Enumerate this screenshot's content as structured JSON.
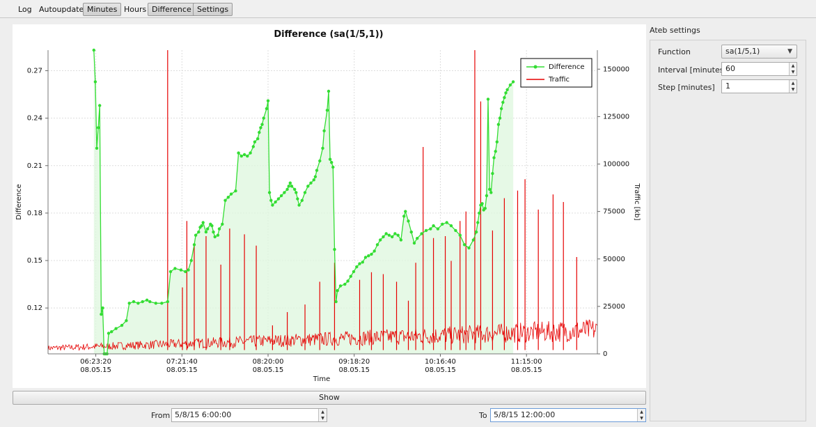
{
  "toolbar": {
    "items": [
      {
        "label": "Log",
        "active": false
      },
      {
        "label": "Autoupdate",
        "active": false
      },
      {
        "label": "Minutes",
        "active": true
      },
      {
        "label": "Hours",
        "active": false
      },
      {
        "label": "Difference",
        "active": true
      },
      {
        "label": "Settings",
        "active": true
      }
    ]
  },
  "settings": {
    "title": "Ateb settings",
    "function_label": "Function",
    "function_value": "sa(1/5,1)",
    "interval_label": "Interval [minutes]",
    "interval_value": "60",
    "step_label": "Step [minutes]",
    "step_value": "1"
  },
  "controls": {
    "show_label": "Show",
    "from_label": "From",
    "from_value": "5/8/15 6:00:00",
    "to_label": "To",
    "to_value": "5/8/15 12:00:00"
  },
  "chart_data": {
    "type": "line",
    "title": "Difference (sa(1/5,1))",
    "xlabel": "Time",
    "ylabel": "Difference",
    "y2label": "Traffic [kb]",
    "x_range": [
      "05:51:00",
      "12:03:00"
    ],
    "x_ticks": [
      {
        "time": "06:23:20",
        "date": "08.05.15"
      },
      {
        "time": "07:21:40",
        "date": "08.05.15"
      },
      {
        "time": "08:20:00",
        "date": "08.05.15"
      },
      {
        "time": "09:18:20",
        "date": "08.05.15"
      },
      {
        "time": "10:16:40",
        "date": "08.05.15"
      },
      {
        "time": "11:15:00",
        "date": "08.05.15"
      }
    ],
    "ylim": [
      0.091,
      0.283
    ],
    "yticks": [
      "0.12",
      "0.15",
      "0.18",
      "0.21",
      "0.24",
      "0.27"
    ],
    "y2lim": [
      0,
      160000
    ],
    "y2ticks": [
      "0",
      "25000",
      "50000",
      "75000",
      "100000",
      "125000",
      "150000"
    ],
    "grid": true,
    "legend_position": "top-right",
    "colors": {
      "difference": "#33dd33",
      "difference_fill": "#ddf7dd",
      "traffic": "#e60000"
    },
    "series": [
      {
        "name": "Difference",
        "axis": "left",
        "points": [
          [
            "06:22:00",
            0.283
          ],
          [
            "06:23:00",
            0.263
          ],
          [
            "06:24:00",
            0.221
          ],
          [
            "06:25:00",
            0.234
          ],
          [
            "06:26:00",
            0.248
          ],
          [
            "06:27:00",
            0.116
          ],
          [
            "06:28:00",
            0.12
          ],
          [
            "06:29:00",
            0.091
          ],
          [
            "06:30:00",
            0.091
          ],
          [
            "06:31:00",
            0.091
          ],
          [
            "06:32:00",
            0.104
          ],
          [
            "06:34:00",
            0.105
          ],
          [
            "06:37:00",
            0.107
          ],
          [
            "06:41:00",
            0.109
          ],
          [
            "06:44:00",
            0.112
          ],
          [
            "06:46:00",
            0.123
          ],
          [
            "06:49:00",
            0.124
          ],
          [
            "06:52:00",
            0.123
          ],
          [
            "06:55:00",
            0.124
          ],
          [
            "06:58:00",
            0.125
          ],
          [
            "07:00:00",
            0.124
          ],
          [
            "07:04:00",
            0.123
          ],
          [
            "07:08:00",
            0.123
          ],
          [
            "07:12:00",
            0.124
          ],
          [
            "07:14:00",
            0.143
          ],
          [
            "07:17:00",
            0.145
          ],
          [
            "07:21:00",
            0.144
          ],
          [
            "07:24:00",
            0.143
          ],
          [
            "07:26:00",
            0.144
          ],
          [
            "07:28:00",
            0.15
          ],
          [
            "07:30:00",
            0.16
          ],
          [
            "07:31:00",
            0.166
          ],
          [
            "07:33:00",
            0.168
          ],
          [
            "07:34:00",
            0.171
          ],
          [
            "07:35:00",
            0.172
          ],
          [
            "07:36:00",
            0.174
          ],
          [
            "07:38:00",
            0.168
          ],
          [
            "07:39:00",
            0.17
          ],
          [
            "07:41:00",
            0.173
          ],
          [
            "07:42:00",
            0.172
          ],
          [
            "07:43:00",
            0.168
          ],
          [
            "07:44:00",
            0.165
          ],
          [
            "07:46:00",
            0.166
          ],
          [
            "07:47:00",
            0.17
          ],
          [
            "07:49:00",
            0.173
          ],
          [
            "07:51:00",
            0.188
          ],
          [
            "07:53:00",
            0.19
          ],
          [
            "07:55:00",
            0.192
          ],
          [
            "07:58:00",
            0.194
          ],
          [
            "08:00:00",
            0.218
          ],
          [
            "08:02:00",
            0.216
          ],
          [
            "08:04:00",
            0.217
          ],
          [
            "08:06:00",
            0.216
          ],
          [
            "08:08:00",
            0.218
          ],
          [
            "08:10:00",
            0.222
          ],
          [
            "08:11:00",
            0.225
          ],
          [
            "08:13:00",
            0.227
          ],
          [
            "08:14:00",
            0.231
          ],
          [
            "08:15:00",
            0.234
          ],
          [
            "08:16:00",
            0.236
          ],
          [
            "08:17:00",
            0.24
          ],
          [
            "08:19:00",
            0.246
          ],
          [
            "08:20:00",
            0.251
          ],
          [
            "08:21:00",
            0.193
          ],
          [
            "08:22:00",
            0.188
          ],
          [
            "08:23:00",
            0.185
          ],
          [
            "08:25:00",
            0.187
          ],
          [
            "08:27:00",
            0.189
          ],
          [
            "08:29:00",
            0.191
          ],
          [
            "08:31:00",
            0.193
          ],
          [
            "08:33:00",
            0.195
          ],
          [
            "08:34:00",
            0.197
          ],
          [
            "08:35:00",
            0.199
          ],
          [
            "08:36:00",
            0.197
          ],
          [
            "08:38:00",
            0.195
          ],
          [
            "08:39:00",
            0.193
          ],
          [
            "08:40:00",
            0.189
          ],
          [
            "08:41:00",
            0.185
          ],
          [
            "08:43:00",
            0.188
          ],
          [
            "08:45:00",
            0.193
          ],
          [
            "08:47:00",
            0.197
          ],
          [
            "08:49:00",
            0.199
          ],
          [
            "08:51:00",
            0.201
          ],
          [
            "08:52:00",
            0.203
          ],
          [
            "08:53:00",
            0.207
          ],
          [
            "08:55:00",
            0.213
          ],
          [
            "08:57:00",
            0.221
          ],
          [
            "08:58:00",
            0.232
          ],
          [
            "09:00:00",
            0.245
          ],
          [
            "09:01:00",
            0.257
          ],
          [
            "09:02:00",
            0.214
          ],
          [
            "09:03:00",
            0.212
          ],
          [
            "09:04:00",
            0.209
          ],
          [
            "09:05:00",
            0.157
          ],
          [
            "09:06:00",
            0.124
          ],
          [
            "09:07:00",
            0.131
          ],
          [
            "09:09:00",
            0.134
          ],
          [
            "09:12:00",
            0.135
          ],
          [
            "09:14:00",
            0.137
          ],
          [
            "09:16:00",
            0.14
          ],
          [
            "09:18:00",
            0.143
          ],
          [
            "09:20:00",
            0.146
          ],
          [
            "09:22:00",
            0.148
          ],
          [
            "09:24:00",
            0.149
          ],
          [
            "09:26:00",
            0.152
          ],
          [
            "09:28:00",
            0.153
          ],
          [
            "09:30:00",
            0.154
          ],
          [
            "09:32:00",
            0.156
          ],
          [
            "09:34:00",
            0.16
          ],
          [
            "09:36:00",
            0.163
          ],
          [
            "09:38:00",
            0.165
          ],
          [
            "09:40:00",
            0.167
          ],
          [
            "09:42:00",
            0.166
          ],
          [
            "09:44:00",
            0.165
          ],
          [
            "09:46:00",
            0.167
          ],
          [
            "09:48:00",
            0.166
          ],
          [
            "09:50:00",
            0.163
          ],
          [
            "09:52:00",
            0.178
          ],
          [
            "09:53:00",
            0.181
          ],
          [
            "09:55:00",
            0.175
          ],
          [
            "09:57:00",
            0.168
          ],
          [
            "09:59:00",
            0.161
          ],
          [
            "10:01:00",
            0.164
          ],
          [
            "10:04:00",
            0.167
          ],
          [
            "10:07:00",
            0.169
          ],
          [
            "10:10:00",
            0.17
          ],
          [
            "10:12:00",
            0.172
          ],
          [
            "10:15:00",
            0.17
          ],
          [
            "10:18:00",
            0.173
          ],
          [
            "10:21:00",
            0.174
          ],
          [
            "10:24:00",
            0.172
          ],
          [
            "10:27:00",
            0.169
          ],
          [
            "10:30:00",
            0.166
          ],
          [
            "10:33:00",
            0.16
          ],
          [
            "10:36:00",
            0.158
          ],
          [
            "10:39:00",
            0.163
          ],
          [
            "10:41:00",
            0.168
          ],
          [
            "10:42:00",
            0.174
          ],
          [
            "10:43:00",
            0.18
          ],
          [
            "10:44:00",
            0.185
          ],
          [
            "10:45:00",
            0.186
          ],
          [
            "10:46:00",
            0.182
          ],
          [
            "10:47:00",
            0.183
          ],
          [
            "10:48:00",
            0.191
          ],
          [
            "10:49:00",
            0.252
          ],
          [
            "10:50:00",
            0.195
          ],
          [
            "10:51:00",
            0.193
          ],
          [
            "10:52:00",
            0.205
          ],
          [
            "10:53:00",
            0.215
          ],
          [
            "10:54:00",
            0.219
          ],
          [
            "10:55:00",
            0.225
          ],
          [
            "10:56:00",
            0.236
          ],
          [
            "10:57:00",
            0.24
          ],
          [
            "10:58:00",
            0.246
          ],
          [
            "10:59:00",
            0.25
          ],
          [
            "11:00:00",
            0.253
          ],
          [
            "11:01:00",
            0.256
          ],
          [
            "11:02:00",
            0.258
          ],
          [
            "11:04:00",
            0.261
          ],
          [
            "11:06:00",
            0.263
          ]
        ]
      },
      {
        "name": "Traffic",
        "axis": "right",
        "spikes": [
          [
            "07:12:00",
            160000
          ],
          [
            "07:22:00",
            35000
          ],
          [
            "07:25:00",
            70000
          ],
          [
            "07:30:00",
            58000
          ],
          [
            "07:38:00",
            62000
          ],
          [
            "07:48:00",
            47000
          ],
          [
            "07:54:00",
            66000
          ],
          [
            "08:04:00",
            63000
          ],
          [
            "08:12:00",
            57000
          ],
          [
            "08:23:00",
            15000
          ],
          [
            "08:33:00",
            22000
          ],
          [
            "08:45:00",
            26000
          ],
          [
            "08:55:00",
            38000
          ],
          [
            "09:05:00",
            48000
          ],
          [
            "09:22:00",
            39000
          ],
          [
            "09:30:00",
            43000
          ],
          [
            "09:38:00",
            42000
          ],
          [
            "09:47:00",
            38000
          ],
          [
            "09:55:00",
            28000
          ],
          [
            "10:00:00",
            48000
          ],
          [
            "10:05:00",
            109000
          ],
          [
            "10:12:00",
            61000
          ],
          [
            "10:20:00",
            62000
          ],
          [
            "10:24:00",
            49000
          ],
          [
            "10:30:00",
            70000
          ],
          [
            "10:34:00",
            75000
          ],
          [
            "10:40:00",
            160000
          ],
          [
            "10:44:00",
            133000
          ],
          [
            "10:52:00",
            65000
          ],
          [
            "11:00:00",
            82000
          ],
          [
            "11:09:00",
            86000
          ],
          [
            "11:14:00",
            92000
          ],
          [
            "11:23:00",
            76000
          ],
          [
            "11:33:00",
            84000
          ],
          [
            "11:40:00",
            80000
          ],
          [
            "11:49:00",
            51000
          ]
        ]
      }
    ]
  }
}
